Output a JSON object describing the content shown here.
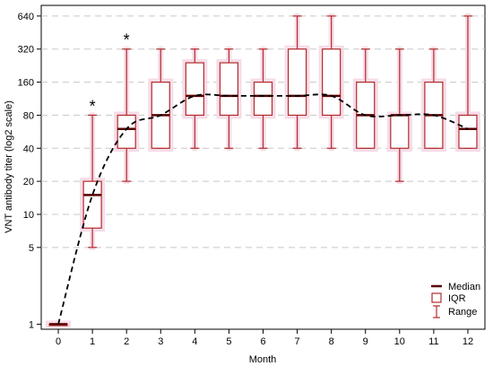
{
  "chart_data": {
    "type": "box",
    "title": "",
    "xlabel": "Month",
    "ylabel": "VNT antibody titer (log2 scale)",
    "y_scale": "log2",
    "ylim": [
      0.9,
      800
    ],
    "yticks": [
      1,
      5,
      10,
      20,
      40,
      80,
      160,
      320,
      640
    ],
    "x": [
      0,
      1,
      2,
      3,
      4,
      5,
      6,
      7,
      8,
      9,
      10,
      11,
      12
    ],
    "boxes": [
      {
        "x": 0,
        "min": 1,
        "q1": 1,
        "median": 1,
        "q3": 1,
        "max": 1
      },
      {
        "x": 1,
        "min": 5,
        "q1": 7.5,
        "median": 15,
        "q3": 20,
        "max": 80
      },
      {
        "x": 2,
        "min": 20,
        "q1": 40,
        "median": 60,
        "q3": 80,
        "max": 320
      },
      {
        "x": 3,
        "min": 40,
        "q1": 40,
        "median": 80,
        "q3": 160,
        "max": 320
      },
      {
        "x": 4,
        "min": 40,
        "q1": 80,
        "median": 120,
        "q3": 240,
        "max": 320
      },
      {
        "x": 5,
        "min": 40,
        "q1": 80,
        "median": 120,
        "q3": 240,
        "max": 320
      },
      {
        "x": 6,
        "min": 40,
        "q1": 80,
        "median": 120,
        "q3": 160,
        "max": 320
      },
      {
        "x": 7,
        "min": 40,
        "q1": 80,
        "median": 120,
        "q3": 320,
        "max": 640
      },
      {
        "x": 8,
        "min": 40,
        "q1": 80,
        "median": 120,
        "q3": 320,
        "max": 640
      },
      {
        "x": 9,
        "min": 40,
        "q1": 40,
        "median": 80,
        "q3": 160,
        "max": 320
      },
      {
        "x": 10,
        "min": 20,
        "q1": 40,
        "median": 80,
        "q3": 80,
        "max": 320
      },
      {
        "x": 11,
        "min": 40,
        "q1": 40,
        "median": 80,
        "q3": 160,
        "max": 320
      },
      {
        "x": 12,
        "min": 40,
        "q1": 40,
        "median": 60,
        "q3": 80,
        "max": 640
      }
    ],
    "trend_line": {
      "style": "dashed",
      "values": [
        1,
        15,
        60,
        80,
        120,
        120,
        120,
        120,
        120,
        80,
        80,
        80,
        60
      ]
    },
    "annotations": [
      {
        "x": 1,
        "text": "*"
      },
      {
        "x": 2,
        "text": "*"
      }
    ],
    "legend": {
      "position": "bottom-right",
      "entries": [
        {
          "label": "Median",
          "kind": "median"
        },
        {
          "label": "IQR",
          "kind": "iqr"
        },
        {
          "label": "Range",
          "kind": "range"
        }
      ]
    },
    "grid": true,
    "colors": {
      "box": "#b22a2a",
      "median": "#5a0000",
      "trend": "#000000",
      "grid": "#c8c8c8",
      "halo": "#f6dce8"
    }
  }
}
